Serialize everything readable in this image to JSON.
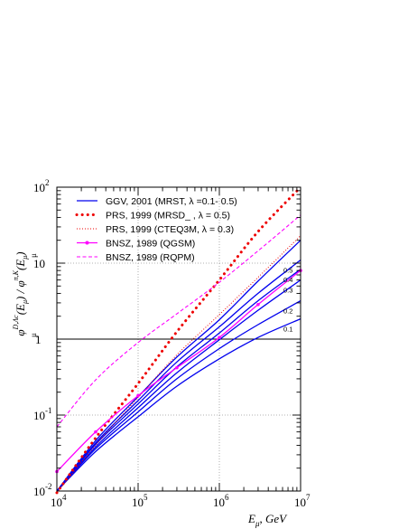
{
  "chart_data": {
    "type": "line",
    "x_scale": "log",
    "y_scale": "log",
    "xlim": [
      10000,
      10000000
    ],
    "ylim": [
      0.01,
      100
    ],
    "xlabel": "E_μ ,  GeV",
    "ylabel": "φ_μ^{D,Λc}(E_μ) / φ_μ^{π,K}(E_μ)",
    "grid": true,
    "x_ticks": [
      {
        "value": 10000,
        "base": "10",
        "exp": "4"
      },
      {
        "value": 100000,
        "base": "10",
        "exp": "5"
      },
      {
        "value": 1000000,
        "base": "10",
        "exp": "6"
      },
      {
        "value": 10000000,
        "base": "10",
        "exp": "7"
      }
    ],
    "y_ticks": [
      {
        "value": 0.01,
        "base": "10",
        "exp": "-2"
      },
      {
        "value": 0.1,
        "base": "10",
        "exp": "-1"
      },
      {
        "value": 1,
        "base": "1",
        "exp": ""
      },
      {
        "value": 10,
        "base": "10",
        "exp": ""
      },
      {
        "value": 100,
        "base": "10",
        "exp": "2"
      }
    ],
    "reference_line": {
      "y": 1
    },
    "legend_position": "top-left",
    "series": [
      {
        "name": "GGV, 2001 (MRST,   λ =0.1- 0.5)",
        "color": "#0000ee",
        "style": "solid",
        "legend_style": "solid",
        "curves": [
          {
            "label": "0.1",
            "x": [
              10000,
              30000,
              100000,
              300000,
              1000000,
              3000000,
              10000000
            ],
            "y": [
              0.01,
              0.033,
              0.095,
              0.24,
              0.55,
              1.05,
              1.85
            ]
          },
          {
            "label": "0.2",
            "x": [
              10000,
              30000,
              100000,
              300000,
              1000000,
              3000000,
              10000000
            ],
            "y": [
              0.01,
              0.036,
              0.11,
              0.3,
              0.75,
              1.55,
              3.2
            ]
          },
          {
            "label": "0.3",
            "x": [
              10000,
              30000,
              100000,
              300000,
              1000000,
              3000000,
              10000000
            ],
            "y": [
              0.01,
              0.038,
              0.125,
              0.36,
              0.98,
              2.4,
              6.0
            ]
          },
          {
            "label": "0.4",
            "x": [
              10000,
              30000,
              100000,
              300000,
              1000000,
              3000000,
              10000000
            ],
            "y": [
              0.01,
              0.041,
              0.14,
              0.43,
              1.2,
              3.2,
              8.3
            ]
          },
          {
            "label": "0.5",
            "x": [
              10000,
              30000,
              100000,
              300000,
              1000000,
              3000000,
              10000000
            ],
            "y": [
              0.01,
              0.043,
              0.155,
              0.5,
              1.45,
              4.0,
              11.0
            ]
          },
          {
            "label": "",
            "x": [
              10000,
              30000,
              100000,
              300000,
              1000000,
              3000000,
              10000000
            ],
            "y": [
              0.01,
              0.046,
              0.175,
              0.58,
              1.8,
              5.8,
              20.0
            ]
          }
        ]
      },
      {
        "name": "PRS, 1999 (MRSD_ ,  λ = 0.5)",
        "color": "#ee0000",
        "style": "bold-dotted",
        "legend_style": "bold-dotted",
        "curves": [
          {
            "label": "",
            "x": [
              10000,
              30000,
              100000,
              300000,
              1000000,
              3000000,
              10000000
            ],
            "y": [
              0.0095,
              0.05,
              0.26,
              1.25,
              6.0,
              26.0,
              100.0
            ]
          }
        ]
      },
      {
        "name": "PRS, 1999 (CTEQ3M,   λ = 0.3)",
        "color": "#ee0000",
        "style": "fine-dotted",
        "legend_style": "fine-dotted",
        "curves": [
          {
            "label": "",
            "x": [
              10000,
              30000,
              100000,
              300000,
              1000000,
              3000000,
              10000000
            ],
            "y": [
              0.0095,
              0.04,
              0.17,
              0.62,
              2.1,
              6.5,
              23.0
            ]
          }
        ]
      },
      {
        "name": "BNSZ, 1989 (QGSM)",
        "color": "#ff00ff",
        "style": "solid",
        "legend_style": "solid-dot",
        "curves": [
          {
            "label": "",
            "x": [
              10000,
              30000,
              100000,
              300000,
              1000000,
              3000000,
              10000000
            ],
            "y": [
              0.018,
              0.06,
              0.18,
              0.42,
              1.05,
              2.85,
              8.0
            ]
          }
        ]
      },
      {
        "name": "BNSZ, 1989 (RQPM)",
        "color": "#ff00ff",
        "style": "dashed",
        "legend_style": "dashed",
        "curves": [
          {
            "label": "",
            "x": [
              10000,
              30000,
              100000,
              300000,
              1000000,
              3000000,
              10000000
            ],
            "y": [
              0.07,
              0.29,
              0.9,
              2.15,
              5.6,
              14.5,
              43.0
            ]
          }
        ]
      }
    ]
  }
}
